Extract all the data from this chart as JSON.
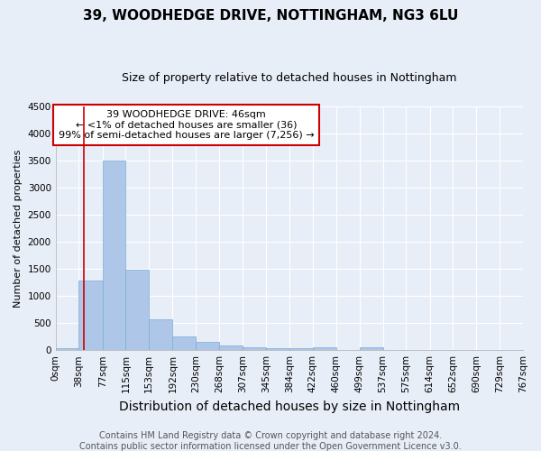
{
  "title": "39, WOODHEDGE DRIVE, NOTTINGHAM, NG3 6LU",
  "subtitle": "Size of property relative to detached houses in Nottingham",
  "xlabel": "Distribution of detached houses by size in Nottingham",
  "ylabel": "Number of detached properties",
  "footer_line1": "Contains HM Land Registry data © Crown copyright and database right 2024.",
  "footer_line2": "Contains public sector information licensed under the Open Government Licence v3.0.",
  "bin_edges": [
    0,
    38,
    77,
    115,
    153,
    192,
    230,
    268,
    307,
    345,
    384,
    422,
    460,
    499,
    537,
    575,
    614,
    652,
    690,
    729,
    767
  ],
  "bar_heights": [
    36,
    1280,
    3500,
    1480,
    570,
    260,
    155,
    90,
    60,
    40,
    30,
    55,
    0,
    45,
    0,
    0,
    0,
    0,
    0,
    0
  ],
  "bar_color": "#aec6e8",
  "bar_edgecolor": "#7aadd4",
  "property_size": 46,
  "vline_color": "#cc0000",
  "annotation_text": "39 WOODHEDGE DRIVE: 46sqm\n← <1% of detached houses are smaller (36)\n99% of semi-detached houses are larger (7,256) →",
  "annotation_box_edgecolor": "#cc0000",
  "annotation_box_facecolor": "#ffffff",
  "annotation_text_color": "#000000",
  "ylim": [
    0,
    4500
  ],
  "background_color": "#e8eef8",
  "plot_background_color": "#e8eef8",
  "grid_color": "#ffffff",
  "title_fontsize": 11,
  "subtitle_fontsize": 9,
  "xlabel_fontsize": 10,
  "ylabel_fontsize": 8,
  "tick_fontsize": 7.5,
  "annotation_fontsize": 8,
  "footer_fontsize": 7
}
